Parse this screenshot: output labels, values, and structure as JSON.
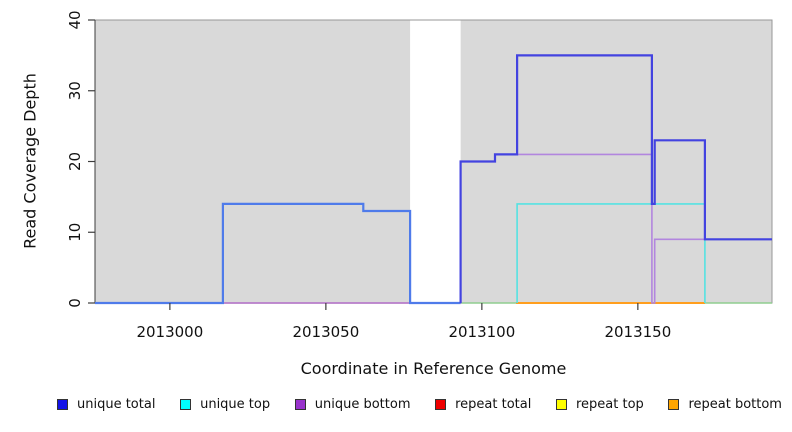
{
  "figure": {
    "x_title": "Coordinate in Reference Genome",
    "y_title": "Read Coverage Depth"
  },
  "chart_data": {
    "type": "line",
    "step": true,
    "title": "",
    "xlabel": "Coordinate in Reference Genome",
    "ylabel": "Read Coverage Depth",
    "xlim": [
      2012976,
      2013193
    ],
    "ylim": [
      0,
      40
    ],
    "x_ticks": [
      2013000,
      2013050,
      2013100,
      2013150
    ],
    "y_ticks": [
      0,
      10,
      20,
      30,
      40
    ],
    "grid": false,
    "panel_bg": "#D9D9D9",
    "border_color": "#979797",
    "axis_color": "#3d3d3d",
    "gap_region": {
      "x0": 2013077,
      "x1": 2013093.2,
      "color": "#FFFFFF",
      "note": "no-data white band"
    },
    "legend_position": "bottom",
    "legend": [
      {
        "label": "unique total",
        "swatch": "#1414E8"
      },
      {
        "label": "unique top",
        "swatch": "#00FFFF"
      },
      {
        "label": "unique bottom",
        "swatch": "#9933CC"
      },
      {
        "label": "repeat total",
        "swatch": "#EE0000"
      },
      {
        "label": "repeat top",
        "swatch": "#FFFF00"
      },
      {
        "label": "repeat bottom",
        "swatch": "#FFA500"
      }
    ],
    "series": [
      {
        "name": "repeat top",
        "paths": [
          {
            "color": "#8FCE8F",
            "width": 1.6,
            "pts": [
              [
                2013093.2,
                0
              ],
              [
                2013111,
                0
              ]
            ]
          },
          {
            "color": "#8FCE8F",
            "width": 1.6,
            "pts": [
              [
                2013171.5,
                0
              ],
              [
                2013193,
                0
              ]
            ]
          }
        ]
      },
      {
        "name": "repeat total",
        "paths": [
          {
            "color": "#DC4852",
            "width": 1.6,
            "pts": [
              [
                2013017,
                0
              ],
              [
                2013077,
                0
              ]
            ]
          }
        ]
      },
      {
        "name": "repeat bottom",
        "paths": [
          {
            "color": "#FF9E1E",
            "width": 2.0,
            "pts": [
              [
                2013111,
                0
              ],
              [
                2013171.5,
                0
              ]
            ]
          }
        ]
      },
      {
        "name": "unique top",
        "paths": [
          {
            "color": "#55E2E2",
            "width": 1.6,
            "pts": [
              [
                2013111.3,
                0
              ],
              [
                2013111.3,
                14
              ],
              [
                2013171.5,
                14
              ],
              [
                2013171.5,
                0
              ]
            ]
          }
        ]
      },
      {
        "name": "unique bottom",
        "paths": [
          {
            "color": "#B286DE",
            "width": 1.6,
            "pts": [
              [
                2012976,
                0
              ],
              [
                2013093.2,
                0
              ],
              [
                2013093.2,
                20
              ],
              [
                2013104.2,
                20
              ],
              [
                2013104.2,
                21
              ],
              [
                2013154.5,
                21
              ],
              [
                2013154.5,
                0
              ],
              [
                2013155.4,
                0
              ],
              [
                2013155.4,
                9
              ],
              [
                2013193,
                9
              ]
            ]
          }
        ]
      },
      {
        "name": "unique total",
        "paths": [
          {
            "color": "#4F7BEA",
            "width": 2.2,
            "pts": [
              [
                2012976,
                0
              ],
              [
                2013017,
                0
              ],
              [
                2013017,
                14
              ],
              [
                2013062,
                14
              ],
              [
                2013062,
                13
              ],
              [
                2013077,
                13
              ],
              [
                2013077,
                0
              ],
              [
                2013093.2,
                0
              ]
            ]
          },
          {
            "color": "#4343E0",
            "width": 2.2,
            "pts": [
              [
                2013093.2,
                0
              ],
              [
                2013093.2,
                20
              ],
              [
                2013104.2,
                20
              ],
              [
                2013104.2,
                21
              ],
              [
                2013111.3,
                21
              ],
              [
                2013111.3,
                35
              ],
              [
                2013154.5,
                35
              ],
              [
                2013154.5,
                14
              ],
              [
                2013155.4,
                14
              ],
              [
                2013155.4,
                23
              ],
              [
                2013171.5,
                23
              ],
              [
                2013171.5,
                9
              ],
              [
                2013193,
                9
              ]
            ]
          }
        ]
      }
    ]
  }
}
